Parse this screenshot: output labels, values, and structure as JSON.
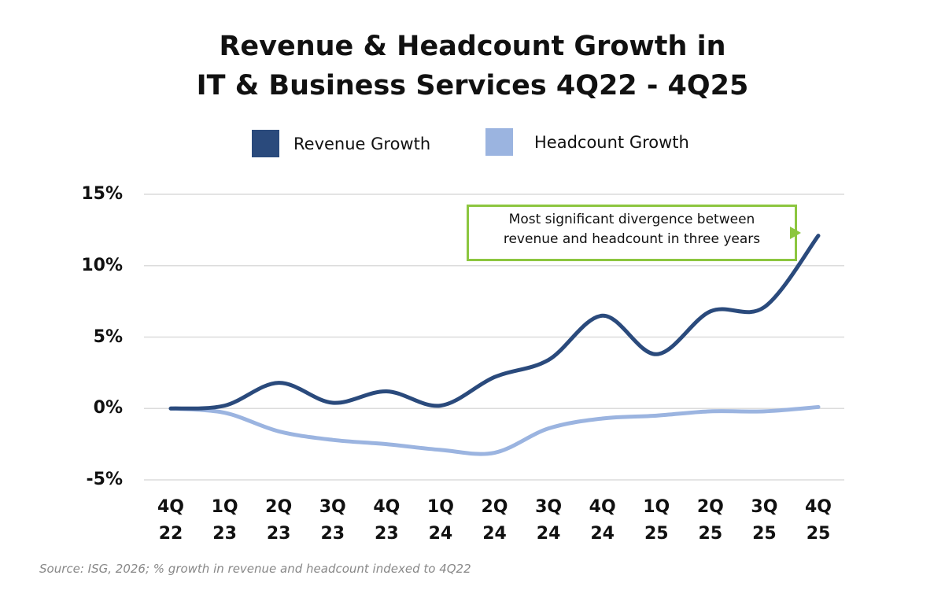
{
  "chart_data": {
    "type": "line",
    "title": "Revenue & Headcount Growth in\nIT & Business Services 4Q22 - 4Q25",
    "categories": [
      "4Q\n22",
      "1Q\n23",
      "2Q\n23",
      "3Q\n23",
      "4Q\n23",
      "1Q\n24",
      "2Q\n24",
      "3Q\n24",
      "4Q\n24",
      "1Q\n25",
      "2Q\n25",
      "3Q\n25",
      "4Q\n25"
    ],
    "series": [
      {
        "name": "Revenue Growth",
        "color": "#2a4a7c",
        "values": [
          0,
          0.2,
          1.8,
          0.4,
          1.2,
          0.2,
          2.2,
          3.4,
          6.5,
          3.8,
          6.8,
          7.1,
          12.1
        ]
      },
      {
        "name": "Headcount Growth",
        "color": "#9bb4e0",
        "values": [
          0,
          -0.3,
          -1.6,
          -2.2,
          -2.5,
          -2.9,
          -3.1,
          -1.4,
          -0.7,
          -0.5,
          -0.2,
          -0.2,
          0.1
        ]
      }
    ],
    "ylim": [
      -5,
      15
    ],
    "yticks": [
      {
        "value": -5,
        "label": "-5%"
      },
      {
        "value": 0,
        "label": "0%"
      },
      {
        "value": 5,
        "label": "5%"
      },
      {
        "value": 10,
        "label": "10%"
      },
      {
        "value": 15,
        "label": "15%"
      }
    ],
    "grid": true,
    "annotation": "Most significant divergence between\nrevenue and headcount in three years",
    "annotation_color": "#8cc63f",
    "source": "Source: ISG, 2026; % growth in revenue and headcount indexed to 4Q22"
  }
}
